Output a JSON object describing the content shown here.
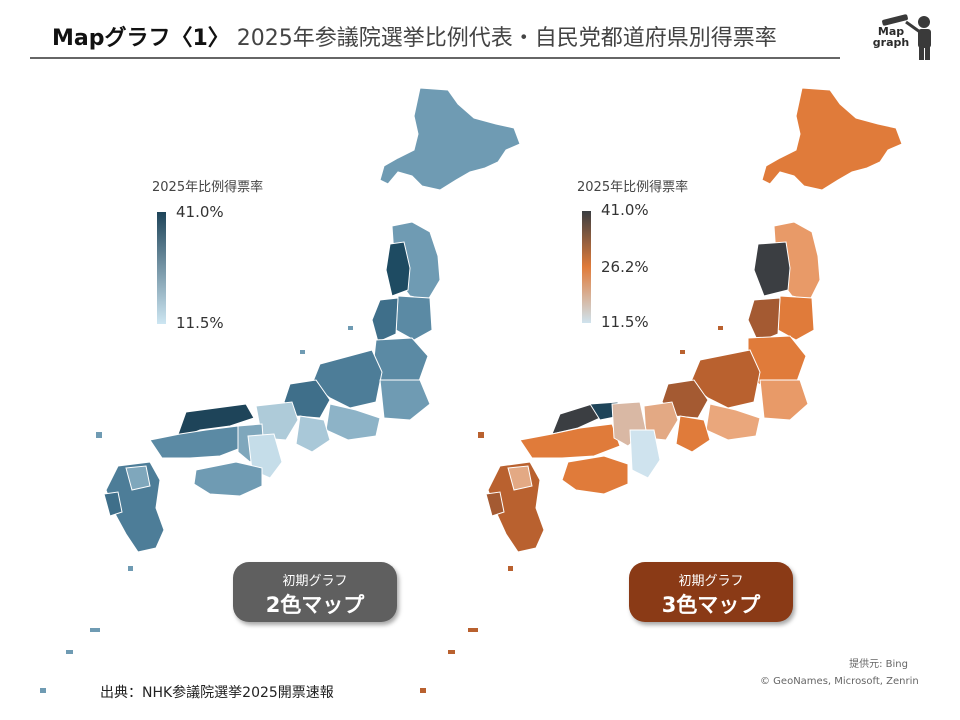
{
  "header": {
    "title_bold": "Mapグラフ〈1〉",
    "title_rest": "2025年参議院選挙比例代表・自民党都道府県別得票率",
    "logo_text_line1": "Map",
    "logo_text_line2": "graph"
  },
  "maps": [
    {
      "id": "two-color",
      "legend_title": "2025年比例得票率",
      "legend_values": [
        "41.0%",
        "11.5%"
      ],
      "badge_line1": "初期グラフ",
      "badge_line2": "2色マップ",
      "colors": {
        "high": "#1e4459",
        "low": "#cde6f2",
        "badge": "#5f5f5f"
      }
    },
    {
      "id": "three-color",
      "legend_title": "2025年比例得票率",
      "legend_values": [
        "41.0%",
        "26.2%",
        "11.5%"
      ],
      "badge_line1": "初期グラフ",
      "badge_line2": "3色マップ",
      "colors": {
        "high": "#3b3e42",
        "mid": "#e07b3a",
        "low": "#cfe3ee",
        "badge": "#8a3a16"
      }
    }
  ],
  "source": "出典：NHK参議院選挙2025開票速報",
  "credit": {
    "line1": "提供元: Bing",
    "line2": "© GeoNames, Microsoft, Zenrin"
  }
}
